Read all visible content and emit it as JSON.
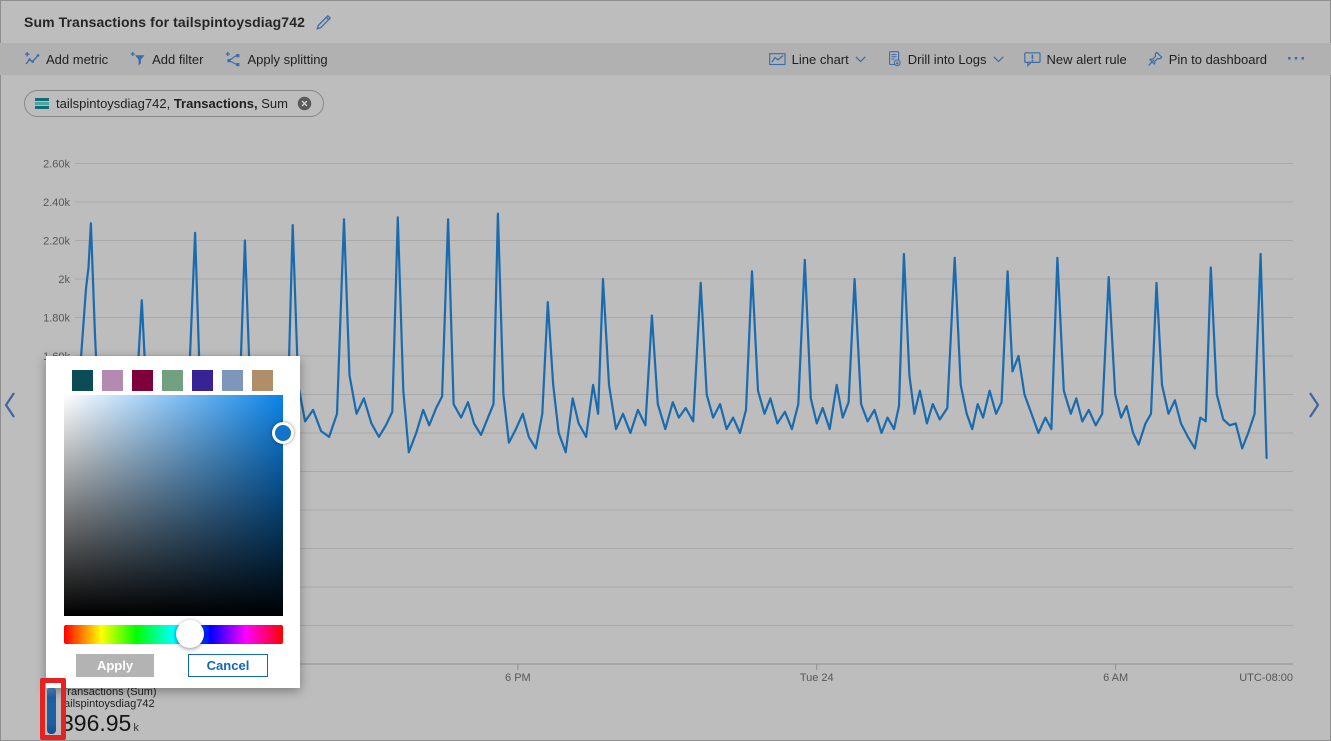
{
  "header": {
    "title": "Sum Transactions for tailspintoysdiag742"
  },
  "toolbar": {
    "add_metric": "Add metric",
    "add_filter": "Add filter",
    "apply_splitting": "Apply splitting",
    "chart_type": "Line chart",
    "drill_into_logs": "Drill into Logs",
    "new_alert_rule": "New alert rule",
    "pin_to_dashboard": "Pin to dashboard",
    "more": "···"
  },
  "metric_pill": {
    "resource": "tailspintoysdiag742,",
    "metric": "Transactions,",
    "aggregation": "Sum"
  },
  "chart_data": {
    "type": "line",
    "title": "Sum Transactions for tailspintoysdiag742",
    "grid": true,
    "legend_position": "bottom-left",
    "ylim": [
      0,
      2.6
    ],
    "y_gridline_step": 0.2,
    "y_unit": "k",
    "y_labels_visible": [
      "2.60k",
      "2.40k",
      "2.20k",
      "2k",
      "1.80k",
      "1.60k"
    ],
    "x_hours_span": 24.45,
    "x_ticks": [
      {
        "h": 8.89,
        "label": "6 PM"
      },
      {
        "h": 14.89,
        "label": "Tue 24"
      },
      {
        "h": 20.89,
        "label": "6 AM"
      }
    ],
    "x_axis_note": "UTC-08:00",
    "series": [
      {
        "name": "Transactions (Sum)",
        "resource": "tailspintoysdiag742",
        "color": "#1a6bae",
        "total": "396.95k",
        "points": [
          [
            0,
            1.38
          ],
          [
            0.1,
            1.52
          ],
          [
            0.22,
            1.95
          ],
          [
            0.27,
            2.06
          ],
          [
            0.32,
            2.29
          ],
          [
            0.4,
            1.72
          ],
          [
            0.48,
            1.28
          ],
          [
            0.62,
            1.22
          ],
          [
            0.76,
            1.18
          ],
          [
            0.9,
            1.24
          ],
          [
            1.05,
            1.2
          ],
          [
            1.2,
            1.26
          ],
          [
            1.34,
            1.89
          ],
          [
            1.45,
            1.32
          ],
          [
            1.6,
            1.22
          ],
          [
            1.76,
            1.17
          ],
          [
            1.94,
            1.24
          ],
          [
            2.1,
            1.2
          ],
          [
            2.26,
            1.3
          ],
          [
            2.41,
            2.24
          ],
          [
            2.51,
            1.45
          ],
          [
            2.63,
            1.25
          ],
          [
            2.8,
            1.2
          ],
          [
            2.98,
            1.26
          ],
          [
            3.14,
            1.18
          ],
          [
            3.29,
            1.28
          ],
          [
            3.41,
            2.2
          ],
          [
            3.52,
            1.4
          ],
          [
            3.68,
            1.22
          ],
          [
            3.84,
            1.27
          ],
          [
            4.0,
            1.19
          ],
          [
            4.14,
            1.25
          ],
          [
            4.27,
            1.33
          ],
          [
            4.37,
            2.28
          ],
          [
            4.48,
            1.45
          ],
          [
            4.62,
            1.26
          ],
          [
            4.78,
            1.32
          ],
          [
            4.94,
            1.21
          ],
          [
            5.1,
            1.18
          ],
          [
            5.26,
            1.3
          ],
          [
            5.4,
            2.31
          ],
          [
            5.51,
            1.5
          ],
          [
            5.65,
            1.3
          ],
          [
            5.8,
            1.38
          ],
          [
            5.95,
            1.25
          ],
          [
            6.1,
            1.18
          ],
          [
            6.24,
            1.24
          ],
          [
            6.37,
            1.31
          ],
          [
            6.48,
            2.32
          ],
          [
            6.59,
            1.42
          ],
          [
            6.7,
            1.1
          ],
          [
            6.85,
            1.2
          ],
          [
            6.99,
            1.32
          ],
          [
            7.11,
            1.24
          ],
          [
            7.25,
            1.33
          ],
          [
            7.37,
            1.39
          ],
          [
            7.49,
            2.31
          ],
          [
            7.6,
            1.35
          ],
          [
            7.75,
            1.28
          ],
          [
            7.89,
            1.36
          ],
          [
            8.01,
            1.25
          ],
          [
            8.15,
            1.19
          ],
          [
            8.29,
            1.28
          ],
          [
            8.4,
            1.35
          ],
          [
            8.49,
            2.34
          ],
          [
            8.6,
            1.4
          ],
          [
            8.71,
            1.15
          ],
          [
            8.85,
            1.22
          ],
          [
            8.99,
            1.3
          ],
          [
            9.11,
            1.18
          ],
          [
            9.25,
            1.12
          ],
          [
            9.38,
            1.3
          ],
          [
            9.49,
            1.88
          ],
          [
            9.6,
            1.45
          ],
          [
            9.71,
            1.2
          ],
          [
            9.85,
            1.1
          ],
          [
            9.99,
            1.38
          ],
          [
            10.11,
            1.25
          ],
          [
            10.26,
            1.18
          ],
          [
            10.4,
            1.45
          ],
          [
            10.5,
            1.3
          ],
          [
            10.6,
            2.0
          ],
          [
            10.72,
            1.45
          ],
          [
            10.86,
            1.22
          ],
          [
            11.0,
            1.3
          ],
          [
            11.15,
            1.2
          ],
          [
            11.3,
            1.32
          ],
          [
            11.45,
            1.24
          ],
          [
            11.58,
            1.81
          ],
          [
            11.7,
            1.35
          ],
          [
            11.85,
            1.22
          ],
          [
            12.0,
            1.36
          ],
          [
            12.12,
            1.28
          ],
          [
            12.26,
            1.33
          ],
          [
            12.41,
            1.26
          ],
          [
            12.56,
            1.98
          ],
          [
            12.68,
            1.4
          ],
          [
            12.81,
            1.28
          ],
          [
            12.95,
            1.35
          ],
          [
            13.08,
            1.22
          ],
          [
            13.21,
            1.28
          ],
          [
            13.35,
            1.2
          ],
          [
            13.47,
            1.32
          ],
          [
            13.59,
            2.04
          ],
          [
            13.71,
            1.42
          ],
          [
            13.84,
            1.3
          ],
          [
            13.96,
            1.38
          ],
          [
            14.1,
            1.25
          ],
          [
            14.25,
            1.31
          ],
          [
            14.39,
            1.22
          ],
          [
            14.52,
            1.35
          ],
          [
            14.65,
            2.1
          ],
          [
            14.77,
            1.38
          ],
          [
            14.89,
            1.25
          ],
          [
            15.01,
            1.33
          ],
          [
            15.15,
            1.22
          ],
          [
            15.29,
            1.45
          ],
          [
            15.41,
            1.28
          ],
          [
            15.53,
            1.36
          ],
          [
            15.65,
            2.0
          ],
          [
            15.78,
            1.35
          ],
          [
            15.91,
            1.26
          ],
          [
            16.05,
            1.32
          ],
          [
            16.19,
            1.2
          ],
          [
            16.31,
            1.28
          ],
          [
            16.44,
            1.22
          ],
          [
            16.54,
            1.34
          ],
          [
            16.64,
            2.13
          ],
          [
            16.75,
            1.5
          ],
          [
            16.85,
            1.3
          ],
          [
            16.96,
            1.42
          ],
          [
            17.1,
            1.25
          ],
          [
            17.22,
            1.35
          ],
          [
            17.36,
            1.27
          ],
          [
            17.51,
            1.33
          ],
          [
            17.66,
            2.11
          ],
          [
            17.78,
            1.45
          ],
          [
            17.9,
            1.3
          ],
          [
            18.01,
            1.22
          ],
          [
            18.12,
            1.35
          ],
          [
            18.23,
            1.28
          ],
          [
            18.36,
            1.42
          ],
          [
            18.49,
            1.3
          ],
          [
            18.6,
            1.36
          ],
          [
            18.72,
            2.04
          ],
          [
            18.82,
            1.52
          ],
          [
            18.94,
            1.6
          ],
          [
            19.06,
            1.4
          ],
          [
            19.2,
            1.3
          ],
          [
            19.34,
            1.2
          ],
          [
            19.48,
            1.28
          ],
          [
            19.6,
            1.22
          ],
          [
            19.72,
            2.11
          ],
          [
            19.85,
            1.42
          ],
          [
            19.99,
            1.3
          ],
          [
            20.1,
            1.38
          ],
          [
            20.22,
            1.26
          ],
          [
            20.35,
            1.32
          ],
          [
            20.49,
            1.24
          ],
          [
            20.62,
            1.3
          ],
          [
            20.75,
            2.01
          ],
          [
            20.88,
            1.4
          ],
          [
            21.0,
            1.28
          ],
          [
            21.11,
            1.34
          ],
          [
            21.24,
            1.2
          ],
          [
            21.35,
            1.14
          ],
          [
            21.49,
            1.25
          ],
          [
            21.6,
            1.3
          ],
          [
            21.71,
            1.98
          ],
          [
            21.82,
            1.45
          ],
          [
            21.95,
            1.3
          ],
          [
            22.08,
            1.37
          ],
          [
            22.2,
            1.25
          ],
          [
            22.34,
            1.18
          ],
          [
            22.48,
            1.12
          ],
          [
            22.59,
            1.28
          ],
          [
            22.7,
            1.26
          ],
          [
            22.8,
            2.06
          ],
          [
            22.92,
            1.4
          ],
          [
            23.05,
            1.27
          ],
          [
            23.18,
            1.24
          ],
          [
            23.3,
            1.25
          ],
          [
            23.43,
            1.12
          ],
          [
            23.55,
            1.2
          ],
          [
            23.68,
            1.3
          ],
          [
            23.8,
            2.13
          ],
          [
            23.92,
            1.07
          ]
        ]
      }
    ]
  },
  "color_picker": {
    "swatches": [
      "#0b4c56",
      "#b58ab2",
      "#7f013c",
      "#71a17f",
      "#372393",
      "#7e96ba",
      "#b08e6a"
    ],
    "sv_handle_color": "#1472c8",
    "hue_thumb_pos": 0.574,
    "apply_label": "Apply",
    "cancel_label": "Cancel"
  },
  "legend": {
    "name": "Transactions (Sum)",
    "resource": "tailspintoysdiag742",
    "value": "396.95",
    "unit": "k"
  },
  "annotation": {
    "color": "#e42222"
  },
  "colors": {
    "accent_blue": "#3a6ca8",
    "line": "#1a6bae",
    "grid": "#a9a9a9",
    "axis_text": "#575757"
  }
}
